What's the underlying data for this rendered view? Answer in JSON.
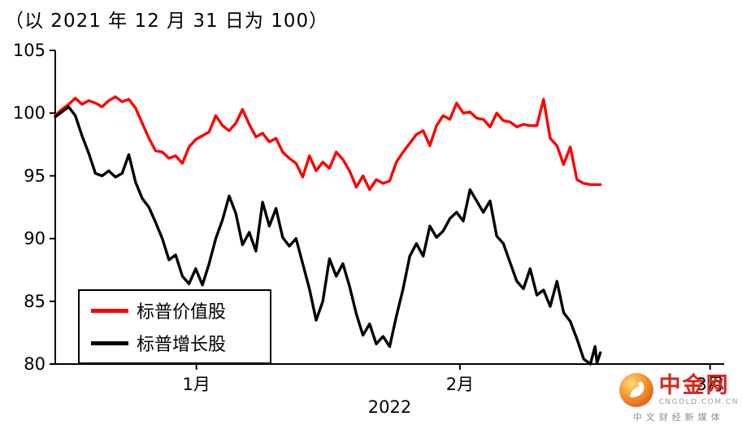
{
  "header": {
    "title": "（以 2021 年 12 月 31 日为 100）"
  },
  "chart_data": {
    "type": "line",
    "title": "（以 2021 年 12 月 31 日为 100）",
    "xlabel": "2022",
    "ylabel": "",
    "ylim": [
      80,
      105
    ],
    "yticks": [
      80,
      85,
      90,
      95,
      100,
      105
    ],
    "xticks": [
      {
        "label": "1月",
        "pos": 21.1
      },
      {
        "label": "2月",
        "pos": 60.5
      },
      {
        "label": "3月",
        "pos": 97.9
      }
    ],
    "grid": false,
    "legend_position": "lower-left",
    "legend": [
      {
        "name": "标普价值股",
        "color": "#ff0000"
      },
      {
        "name": "标普增长股",
        "color": "#000000"
      }
    ],
    "series": [
      {
        "name": "标普价值股",
        "color": "#ff0000",
        "points": [
          [
            0,
            99.8
          ],
          [
            1,
            100.3
          ],
          [
            2,
            100.7
          ],
          [
            3,
            101.2
          ],
          [
            4,
            100.7
          ],
          [
            5,
            101.0
          ],
          [
            6,
            100.8
          ],
          [
            7,
            100.5
          ],
          [
            8,
            101.0
          ],
          [
            9,
            101.3
          ],
          [
            10,
            100.9
          ],
          [
            11,
            101.1
          ],
          [
            12,
            100.4
          ],
          [
            13,
            99.2
          ],
          [
            14,
            98.0
          ],
          [
            15,
            97.0
          ],
          [
            16,
            96.9
          ],
          [
            17,
            96.4
          ],
          [
            18,
            96.6
          ],
          [
            19,
            96.0
          ],
          [
            20,
            97.3
          ],
          [
            21,
            97.9
          ],
          [
            22,
            98.2
          ],
          [
            23,
            98.5
          ],
          [
            24,
            99.8
          ],
          [
            25,
            99.0
          ],
          [
            26,
            98.6
          ],
          [
            27,
            99.2
          ],
          [
            28,
            100.3
          ],
          [
            29,
            99.1
          ],
          [
            30,
            98.1
          ],
          [
            31,
            98.4
          ],
          [
            32,
            97.7
          ],
          [
            33,
            98.0
          ],
          [
            34,
            96.9
          ],
          [
            35,
            96.4
          ],
          [
            36,
            96.0
          ],
          [
            37,
            94.9
          ],
          [
            38,
            96.6
          ],
          [
            39,
            95.4
          ],
          [
            40,
            96.1
          ],
          [
            41,
            95.6
          ],
          [
            42,
            96.9
          ],
          [
            43,
            96.3
          ],
          [
            44,
            95.4
          ],
          [
            45,
            94.1
          ],
          [
            46,
            95.0
          ],
          [
            47,
            93.9
          ],
          [
            48,
            94.7
          ],
          [
            49,
            94.4
          ],
          [
            50,
            94.6
          ],
          [
            51,
            96.1
          ],
          [
            52,
            96.9
          ],
          [
            53,
            97.6
          ],
          [
            54,
            98.3
          ],
          [
            55,
            98.6
          ],
          [
            56,
            97.4
          ],
          [
            57,
            99.0
          ],
          [
            58,
            99.8
          ],
          [
            59,
            99.5
          ],
          [
            60,
            100.8
          ],
          [
            61,
            100.0
          ],
          [
            62,
            100.1
          ],
          [
            63,
            99.6
          ],
          [
            64,
            99.5
          ],
          [
            65,
            98.9
          ],
          [
            66,
            100.0
          ],
          [
            67,
            99.4
          ],
          [
            68,
            99.3
          ],
          [
            69,
            98.9
          ],
          [
            70,
            99.1
          ],
          [
            71,
            99.0
          ],
          [
            72,
            99.0
          ],
          [
            73,
            101.1
          ],
          [
            74,
            98.0
          ],
          [
            75,
            97.4
          ],
          [
            76,
            95.9
          ],
          [
            77,
            97.3
          ],
          [
            78,
            94.7
          ],
          [
            79,
            94.4
          ],
          [
            80,
            94.3
          ],
          [
            81.5,
            94.3
          ]
        ]
      },
      {
        "name": "标普增长股",
        "color": "#000000",
        "points": [
          [
            0,
            99.7
          ],
          [
            1,
            100.1
          ],
          [
            2,
            100.5
          ],
          [
            3,
            99.8
          ],
          [
            4,
            98.2
          ],
          [
            5,
            96.8
          ],
          [
            6,
            95.2
          ],
          [
            7,
            95.0
          ],
          [
            8,
            95.4
          ],
          [
            9,
            94.9
          ],
          [
            10,
            95.2
          ],
          [
            11,
            96.7
          ],
          [
            12,
            94.5
          ],
          [
            13,
            93.2
          ],
          [
            14,
            92.5
          ],
          [
            15,
            91.3
          ],
          [
            16,
            90.0
          ],
          [
            17,
            88.3
          ],
          [
            18,
            88.7
          ],
          [
            19,
            87.0
          ],
          [
            20,
            86.4
          ],
          [
            21,
            87.6
          ],
          [
            22,
            86.3
          ],
          [
            23,
            88.0
          ],
          [
            24,
            90.0
          ],
          [
            25,
            91.5
          ],
          [
            26,
            93.4
          ],
          [
            27,
            92.0
          ],
          [
            28,
            89.5
          ],
          [
            29,
            90.5
          ],
          [
            30,
            89.0
          ],
          [
            31,
            92.9
          ],
          [
            32,
            91.0
          ],
          [
            33,
            92.4
          ],
          [
            34,
            90.1
          ],
          [
            35,
            89.4
          ],
          [
            36,
            90.0
          ],
          [
            37,
            88.0
          ],
          [
            38,
            86.0
          ],
          [
            39,
            83.5
          ],
          [
            40,
            85.0
          ],
          [
            41,
            88.4
          ],
          [
            42,
            87.0
          ],
          [
            43,
            88.0
          ],
          [
            44,
            86.2
          ],
          [
            45,
            84.0
          ],
          [
            46,
            82.3
          ],
          [
            47,
            83.2
          ],
          [
            48,
            81.6
          ],
          [
            49,
            82.2
          ],
          [
            50,
            81.4
          ],
          [
            51,
            83.8
          ],
          [
            52,
            86.0
          ],
          [
            53,
            88.6
          ],
          [
            54,
            89.6
          ],
          [
            55,
            88.6
          ],
          [
            56,
            91.0
          ],
          [
            57,
            90.1
          ],
          [
            58,
            90.6
          ],
          [
            59,
            91.6
          ],
          [
            60,
            92.1
          ],
          [
            61,
            91.4
          ],
          [
            62,
            93.9
          ],
          [
            63,
            93.0
          ],
          [
            64,
            92.1
          ],
          [
            65,
            93.0
          ],
          [
            66,
            90.2
          ],
          [
            67,
            89.6
          ],
          [
            68,
            88.1
          ],
          [
            69,
            86.6
          ],
          [
            70,
            86.0
          ],
          [
            71,
            87.6
          ],
          [
            72,
            85.5
          ],
          [
            73,
            85.9
          ],
          [
            74,
            84.6
          ],
          [
            75,
            86.6
          ],
          [
            76,
            84.1
          ],
          [
            77,
            83.4
          ],
          [
            78,
            82.0
          ],
          [
            79,
            80.4
          ],
          [
            80,
            80.0
          ],
          [
            80.7,
            81.4
          ],
          [
            81,
            80.1
          ],
          [
            81.5,
            80.9
          ]
        ]
      }
    ]
  },
  "watermark": {
    "brand": "中金网",
    "site": "CNGOLD.COM.CN",
    "tagline": "中文财经新媒体"
  }
}
